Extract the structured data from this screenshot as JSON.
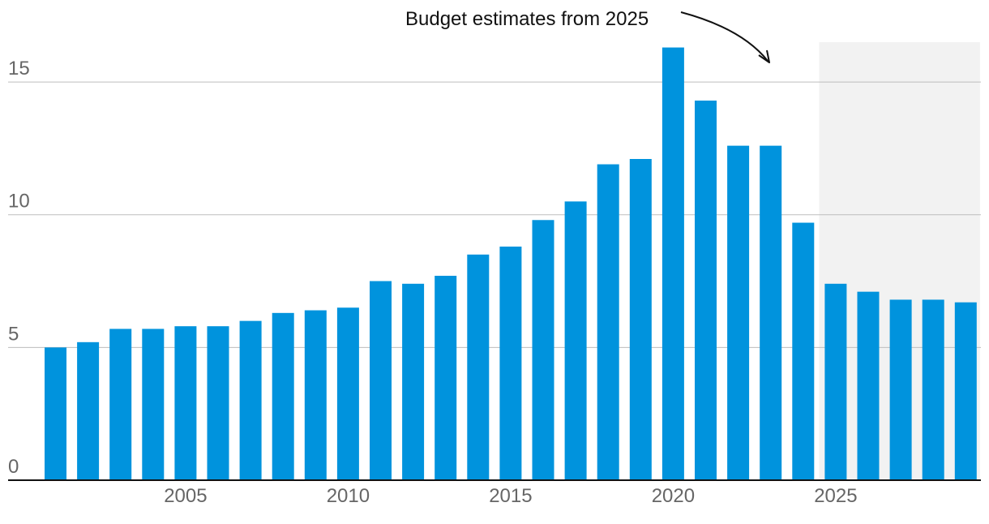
{
  "chart_data": {
    "type": "bar",
    "title": "",
    "xlabel": "",
    "ylabel": "",
    "categories": [
      2001,
      2002,
      2003,
      2004,
      2005,
      2006,
      2007,
      2008,
      2009,
      2010,
      2011,
      2012,
      2013,
      2014,
      2015,
      2016,
      2017,
      2018,
      2019,
      2020,
      2021,
      2022,
      2023,
      2024,
      2025,
      2026,
      2027,
      2028,
      2029
    ],
    "values": [
      5.0,
      5.2,
      5.7,
      5.7,
      5.8,
      5.8,
      6.0,
      6.3,
      6.4,
      6.5,
      7.5,
      7.4,
      7.7,
      8.5,
      8.8,
      9.8,
      10.5,
      11.9,
      12.1,
      16.3,
      14.3,
      12.6,
      12.6,
      9.7,
      7.4,
      7.1,
      6.8,
      6.8,
      6.7
    ],
    "ylim": [
      0,
      16.5
    ],
    "yticks": [
      0,
      5,
      10,
      15
    ],
    "yticklabels": [
      "0",
      "5",
      "10",
      "15"
    ],
    "xticks": [
      2005,
      2010,
      2015,
      2020,
      2025
    ],
    "xticklabels": [
      "2005",
      "2010",
      "2015",
      "2020",
      "2025"
    ],
    "grid": true,
    "highlight_region": {
      "from": 2025,
      "to": 2029,
      "label": "Budget estimates from 2025"
    },
    "annotation": {
      "text": "Budget estimates from 2025",
      "points_to": 2023.3
    },
    "colors": {
      "bar": "#0093dd",
      "grid": "#bdbdbd",
      "axis": "#111111",
      "shade": "#f2f2f2"
    }
  }
}
